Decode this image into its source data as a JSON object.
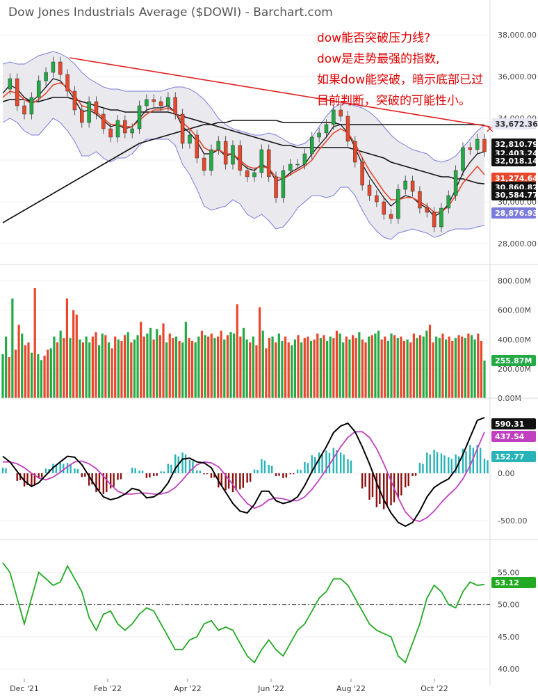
{
  "title": "Dow Jones Industrials Average ($DOWI) - Barchart.com",
  "annotation": [
    "dow能否突破压力线?",
    "dow是走势最强的指数,",
    "如果dow能突破，暗示底部已过",
    "目前判断，突破的可能性小。"
  ],
  "colors": {
    "up": "#22aa44",
    "down": "#e8472b",
    "band": "#7b7bdc",
    "trend": "#e02020",
    "signal": "#c040c0",
    "hist_pos": "#27b3b8",
    "hist_neg": "#8b1010",
    "rsi": "#22aa22"
  },
  "chart_data": [
    {
      "type": "line",
      "title": "Dow Jones Industrials Average ($DOWI) - Barchart.com",
      "x_ticks": [
        "Dec '21",
        "Feb '22",
        "Apr '22",
        "Jun '22",
        "Aug '22",
        "Oct '22"
      ],
      "y_ticks": [
        "38,000.00",
        "36,000.00",
        "34,000.00",
        "32,000.00",
        "30,000.00",
        "28,000.00"
      ],
      "ylim": [
        27000,
        39000
      ],
      "last_value_tags": [
        "33,672.36",
        "32,810.79",
        "32,403.24",
        "32,018.14",
        "31,274.64",
        "30,860.82",
        "30,584.77",
        "28,876.93"
      ],
      "price": [
        35400,
        35900,
        34600,
        34200,
        35000,
        35800,
        36200,
        36700,
        36100,
        35300,
        34400,
        33800,
        34800,
        34200,
        33500,
        33100,
        33900,
        33300,
        33500,
        34600,
        34900,
        34800,
        34600,
        35000,
        34200,
        32800,
        33200,
        32100,
        31500,
        32500,
        32900,
        31800,
        32700,
        31500,
        31200,
        31400,
        32500,
        31200,
        30200,
        31500,
        31800,
        31800,
        32300,
        33100,
        33300,
        33700,
        34400,
        34100,
        32900,
        31900,
        30800,
        30300,
        30000,
        29400,
        29200,
        30600,
        31000,
        30500,
        29700,
        29500,
        28800,
        29700,
        30300,
        31500,
        32600,
        32500,
        33000,
        32400
      ],
      "ma_black": [
        35200,
        35600,
        35400,
        35000,
        34800,
        35100,
        35500,
        35900,
        35800,
        35400,
        34900,
        34300,
        34400,
        34200,
        33900,
        33600,
        33700,
        33500,
        33600,
        34000,
        34400,
        34500,
        34500,
        34600,
        34300,
        33600,
        33300,
        32900,
        32300,
        32300,
        32500,
        32200,
        32300,
        31900,
        31600,
        31500,
        31800,
        31600,
        31000,
        31100,
        31400,
        31600,
        31800,
        32300,
        32700,
        33100,
        33600,
        33700,
        33300,
        32600,
        31800,
        31200,
        30700,
        30200,
        29800,
        30100,
        30300,
        30200,
        29900,
        29700,
        29300,
        29500,
        29900,
        30600,
        31400,
        31900,
        32300,
        32400
      ],
      "ma_red": [
        35000,
        35300,
        35200,
        34900,
        34700,
        34900,
        35200,
        35600,
        35700,
        35500,
        35100,
        34600,
        34500,
        34300,
        34000,
        33700,
        33700,
        33600,
        33600,
        33900,
        34200,
        34400,
        34400,
        34500,
        34300,
        33800,
        33500,
        33100,
        32600,
        32400,
        32500,
        32300,
        32300,
        32000,
        31700,
        31600,
        31700,
        31600,
        31200,
        31100,
        31300,
        31500,
        31700,
        32000,
        32500,
        32900,
        33300,
        33500,
        33300,
        32800,
        32100,
        31500,
        31000,
        30500,
        30100,
        30100,
        30200,
        30200,
        30000,
        29800,
        29500,
        29500,
        29800,
        30300,
        30900,
        31300,
        31700,
        31300
      ],
      "ma_long1": [
        34800,
        34900,
        34900,
        34900,
        34800,
        34800,
        34900,
        35000,
        35000,
        35000,
        34900,
        34800,
        34700,
        34600,
        34500,
        34400,
        34400,
        34300,
        34300,
        34300,
        34300,
        34300,
        34300,
        34300,
        34200,
        34100,
        34000,
        33900,
        33800,
        33700,
        33600,
        33500,
        33400,
        33300,
        33200,
        33100,
        33000,
        32900,
        32800,
        32700,
        32700,
        32600,
        32600,
        32600,
        32600,
        32600,
        32600,
        32600,
        32600,
        32500,
        32400,
        32300,
        32200,
        32100,
        31900,
        31800,
        31700,
        31600,
        31500,
        31400,
        31300,
        31200,
        31200,
        31100,
        31100,
        31000,
        30900,
        30860
      ],
      "ma_long2": [
        29000,
        29200,
        29400,
        29600,
        29800,
        30000,
        30200,
        30400,
        30600,
        30800,
        31000,
        31200,
        31400,
        31600,
        31800,
        32000,
        32200,
        32400,
        32600,
        32800,
        32900,
        33000,
        33100,
        33200,
        33300,
        33400,
        33500,
        33600,
        33700,
        33700,
        33800,
        33800,
        33900,
        33900,
        33900,
        33900,
        33900,
        33900,
        33900,
        33800,
        33800,
        33800,
        33800,
        33800,
        33800,
        33800,
        33800,
        33700,
        33700,
        33700,
        33700,
        33700,
        33700,
        33700,
        33700,
        33700,
        33700,
        33700,
        33700,
        33700,
        33700,
        33700,
        33700,
        33700,
        33700,
        33700,
        33700,
        33672
      ],
      "band_upper": [
        36600,
        36700,
        36600,
        36600,
        36800,
        37000,
        37100,
        37200,
        37100,
        36900,
        36600,
        36200,
        35900,
        35700,
        35500,
        35400,
        35400,
        35300,
        35300,
        35300,
        35300,
        35300,
        35300,
        35400,
        35500,
        35500,
        35400,
        35200,
        34900,
        34500,
        34000,
        33700,
        33500,
        33400,
        33300,
        33200,
        33200,
        33300,
        33200,
        33000,
        32800,
        32700,
        32800,
        33100,
        33600,
        34100,
        34500,
        34700,
        34700,
        34600,
        34500,
        34300,
        34000,
        33600,
        33200,
        32900,
        32700,
        32500,
        32400,
        32300,
        32000,
        31900,
        32000,
        32200,
        32600,
        33000,
        33400,
        33672
      ],
      "band_lower": [
        33800,
        34000,
        33800,
        33400,
        33200,
        33200,
        33600,
        34000,
        33800,
        33400,
        32900,
        32200,
        32200,
        32400,
        32100,
        31900,
        32100,
        32100,
        32300,
        32700,
        33000,
        33000,
        33000,
        33000,
        32700,
        31800,
        31300,
        30600,
        29800,
        29600,
        29700,
        29800,
        30100,
        29900,
        29400,
        29200,
        29400,
        29100,
        28700,
        28800,
        29200,
        29700,
        30000,
        30300,
        30300,
        30200,
        30300,
        30700,
        30700,
        30300,
        29600,
        29000,
        28600,
        28300,
        28200,
        28500,
        28600,
        28700,
        28600,
        28500,
        28300,
        28400,
        28600,
        28700,
        28700,
        28700,
        28800,
        28876
      ]
    },
    {
      "type": "bar",
      "title": "Volume",
      "y_ticks": [
        "800.00M",
        "600.00M",
        "400.00M",
        "200.00M",
        "0.00M"
      ],
      "ylim": [
        0,
        850
      ],
      "last_value_tag": "255.87M",
      "values": [
        300,
        420,
        280,
        680,
        330,
        500,
        440,
        360,
        380,
        310,
        750,
        300,
        260,
        290,
        330,
        340,
        420,
        380,
        460,
        410,
        680,
        410,
        600,
        570,
        400,
        380,
        420,
        380,
        420,
        450,
        360,
        440,
        430,
        380,
        340,
        420,
        400,
        390,
        430,
        450,
        380,
        400,
        430,
        520,
        420,
        440,
        480,
        400,
        470,
        430,
        510,
        380,
        440,
        410,
        420,
        390,
        380,
        520,
        410,
        390,
        380,
        420,
        460,
        430,
        420,
        440,
        410,
        420,
        460,
        400,
        430,
        450,
        440,
        640,
        420,
        480,
        400,
        380,
        420,
        360,
        620,
        460,
        340,
        410,
        420,
        380,
        440,
        390,
        420,
        380,
        360,
        400,
        430,
        380,
        410,
        420,
        390,
        400,
        440,
        410,
        430,
        390,
        420,
        410,
        460,
        440,
        380,
        420,
        400,
        430,
        410,
        450,
        400,
        380,
        420,
        430,
        440,
        460,
        400,
        420,
        390,
        440,
        430,
        410,
        420,
        390,
        400,
        380,
        440,
        410,
        430,
        420,
        460,
        500,
        380,
        420,
        410,
        440,
        400,
        420,
        390,
        410,
        430,
        420,
        410,
        440,
        430,
        400,
        440,
        390,
        256
      ],
      "colors_sequence": "alternating up/down per session"
    },
    {
      "type": "line",
      "title": "MACD",
      "y_ticks": [
        "0.00",
        "-500.00"
      ],
      "ylim": [
        -700,
        700
      ],
      "last_value_tags": [
        "590.31",
        "437.54",
        "152.77"
      ],
      "macd": [
        180,
        120,
        20,
        -80,
        -140,
        -100,
        -20,
        60,
        120,
        180,
        170,
        90,
        -30,
        -150,
        -250,
        -280,
        -260,
        -220,
        -160,
        -180,
        -260,
        -250,
        -200,
        -100,
        50,
        150,
        160,
        120,
        110,
        60,
        -80,
        -200,
        -320,
        -400,
        -420,
        -330,
        -190,
        -190,
        -290,
        -320,
        -300,
        -250,
        -130,
        20,
        150,
        280,
        430,
        500,
        530,
        440,
        280,
        100,
        -100,
        -280,
        -420,
        -520,
        -560,
        -520,
        -400,
        -250,
        -150,
        -100,
        -60,
        40,
        200,
        380,
        560,
        590
      ],
      "signal": [
        120,
        120,
        100,
        60,
        0,
        -50,
        -70,
        -40,
        10,
        70,
        120,
        130,
        100,
        50,
        -30,
        -120,
        -190,
        -220,
        -220,
        -210,
        -210,
        -220,
        -220,
        -200,
        -150,
        -70,
        20,
        90,
        120,
        110,
        70,
        -20,
        -120,
        -230,
        -320,
        -370,
        -340,
        -280,
        -260,
        -270,
        -290,
        -290,
        -250,
        -170,
        -70,
        40,
        160,
        280,
        380,
        440,
        440,
        380,
        260,
        100,
        -80,
        -260,
        -410,
        -490,
        -510,
        -470,
        -400,
        -310,
        -230,
        -160,
        -60,
        80,
        260,
        437
      ],
      "histogram": [
        60,
        0,
        -80,
        -140,
        -140,
        -50,
        50,
        100,
        110,
        110,
        50,
        -40,
        -130,
        -200,
        -220,
        -160,
        -70,
        0,
        60,
        30,
        -50,
        -30,
        20,
        100,
        200,
        220,
        140,
        30,
        -10,
        -50,
        -150,
        -180,
        -200,
        -170,
        -100,
        40,
        150,
        90,
        -30,
        -50,
        -10,
        40,
        120,
        190,
        220,
        240,
        270,
        220,
        150,
        0,
        -160,
        -280,
        -360,
        -380,
        -340,
        -260,
        -150,
        -30,
        110,
        220,
        250,
        210,
        170,
        200,
        260,
        300,
        300,
        153
      ]
    },
    {
      "type": "line",
      "title": "RSI",
      "y_ticks": [
        "55.00",
        "50.00",
        "45.00",
        "40.00"
      ],
      "ylim": [
        38.5,
        58.5
      ],
      "last_value_tag": "53.12",
      "reference_line": 50,
      "values": [
        56.5,
        55,
        51,
        47,
        51,
        55,
        54,
        53,
        53.5,
        56,
        54,
        52,
        48,
        46,
        48.5,
        49,
        47,
        46,
        47,
        48.5,
        49.5,
        49,
        47,
        45,
        43,
        43,
        44.5,
        45,
        47,
        47.5,
        46,
        46.5,
        46,
        44,
        42,
        41,
        43,
        44.5,
        43,
        42,
        44,
        46,
        47,
        49,
        51,
        52,
        54,
        54,
        53,
        51,
        49,
        47,
        46,
        45.5,
        45,
        42,
        41,
        44,
        47,
        51,
        53,
        52,
        50,
        49.5,
        52,
        53.5,
        53,
        53.12
      ]
    }
  ]
}
